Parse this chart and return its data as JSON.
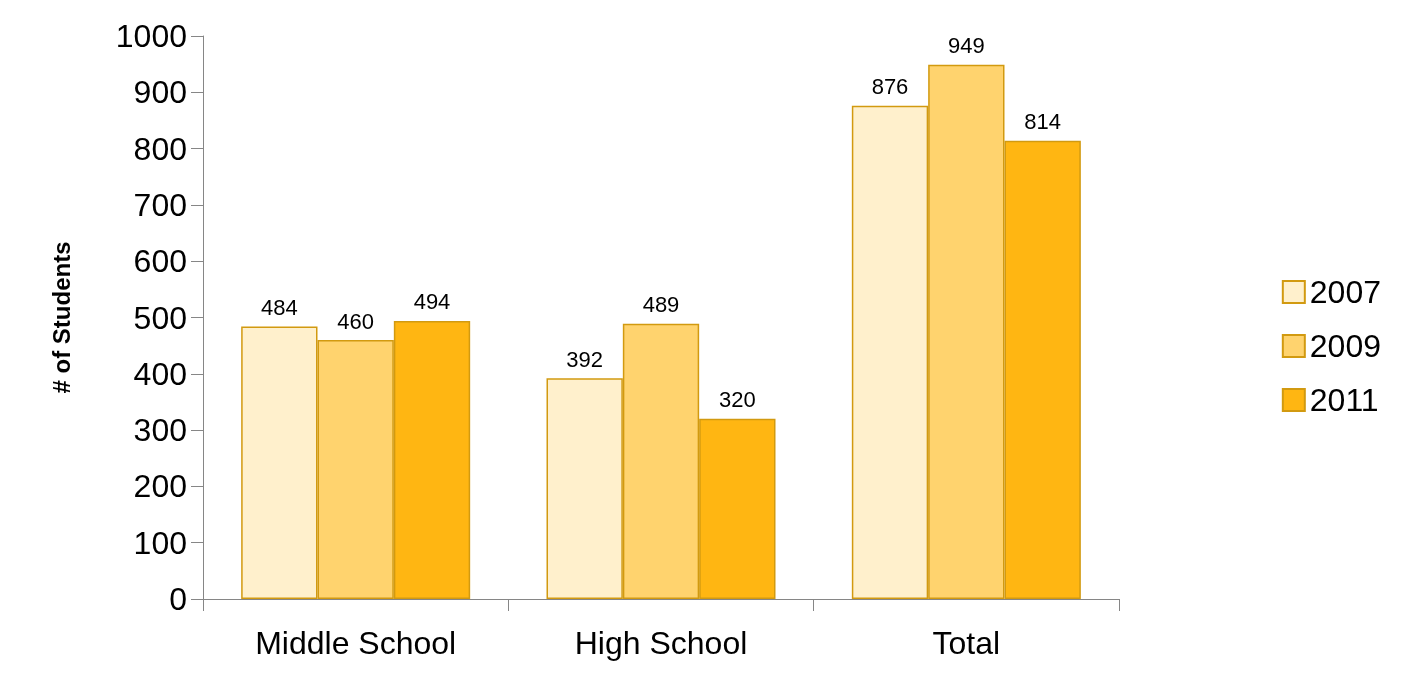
{
  "chart_data": {
    "type": "bar",
    "ylabel": "# of Students",
    "categories": [
      "Middle School",
      "High School",
      "Total"
    ],
    "series": [
      {
        "name": "2007",
        "color": "#fff0cc",
        "values": [
          484,
          392,
          876
        ]
      },
      {
        "name": "2009",
        "color": "#ffd36e",
        "values": [
          460,
          489,
          949
        ]
      },
      {
        "name": "2011",
        "color": "#ffb612",
        "values": [
          494,
          320,
          814
        ]
      }
    ],
    "ylim": [
      0,
      1000
    ],
    "yticks": [
      0,
      100,
      200,
      300,
      400,
      500,
      600,
      700,
      800,
      900,
      1000
    ],
    "data_labels": true,
    "legend": "right",
    "grid": false
  }
}
